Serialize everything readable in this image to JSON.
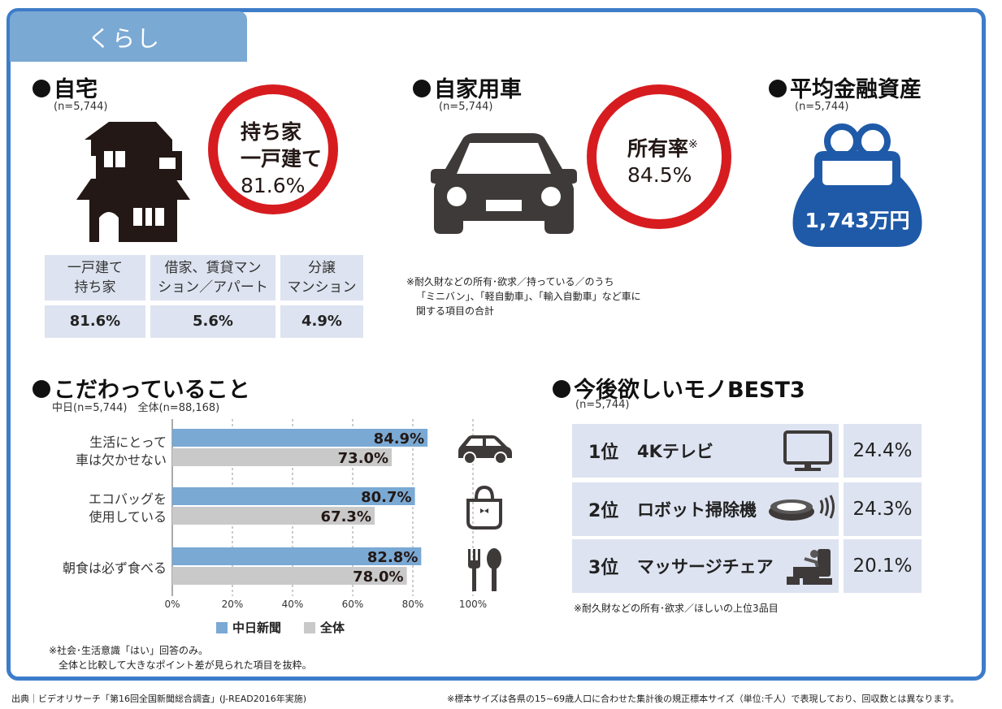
{
  "category_tab": "くらし",
  "home": {
    "title": "自宅",
    "n": "(n=5,744)",
    "circle_lines": [
      "持ち家",
      "一戸建て",
      "81.6%"
    ],
    "table_headers": [
      "一戸建て\n持ち家",
      "借家、賃貸マン\nション／アパート",
      "分譲\nマンション"
    ],
    "table_values": [
      "81.6%",
      "5.6%",
      "4.9%"
    ]
  },
  "car": {
    "title": "自家用車",
    "n": "(n=5,744)",
    "circle_label": "所有率",
    "circle_mark": "※",
    "circle_value": "84.5%",
    "note": [
      "※耐久財などの所有･欲求／持っている／のうち",
      "「ミニバン」、「軽自動車」、「輸入自動車」など車に",
      "関する項目の合計"
    ]
  },
  "assets": {
    "title": "平均金融資産",
    "n": "(n=5,744)",
    "value": "1,743万円"
  },
  "kodawari": {
    "title": "こだわっていること",
    "n": "中日(n=5,744)　全体(n=88,168)",
    "note": [
      "※社会･生活意識「はい」回答のみ。",
      "　全体と比較して大きなポイント差が見られた項目を抜粋。"
    ],
    "legend": [
      "中日新聞",
      "全体"
    ]
  },
  "chart_data": {
    "type": "bar",
    "orientation": "horizontal",
    "categories": [
      "生活にとって\n車は欠かせない",
      "エコバッグを\n使用している",
      "朝食は必ず食べる"
    ],
    "series": [
      {
        "name": "中日新聞",
        "values": [
          84.9,
          80.7,
          82.8
        ],
        "color": "#7aa9d4"
      },
      {
        "name": "全体",
        "values": [
          73.0,
          67.3,
          78.0
        ],
        "color": "#c9c9ca"
      }
    ],
    "value_labels": [
      [
        "84.9%",
        "73.0%"
      ],
      [
        "80.7%",
        "67.3%"
      ],
      [
        "82.8%",
        "78.0%"
      ]
    ],
    "xlim": [
      0,
      100
    ],
    "xticks": [
      "0%",
      "20%",
      "40%",
      "60%",
      "80%",
      "100%"
    ],
    "grid": "dashed-vertical",
    "legend_position": "bottom"
  },
  "best3": {
    "title": "今後欲しいモノBEST3",
    "n": "(n=5,744)",
    "rows": [
      {
        "rank": "1位",
        "item": "4Kテレビ",
        "pct": "24.4%",
        "icon": "tv-icon"
      },
      {
        "rank": "2位",
        "item": "ロボット掃除機",
        "pct": "24.3%",
        "icon": "robot-vacuum-icon"
      },
      {
        "rank": "3位",
        "item": "マッサージチェア",
        "pct": "20.1%",
        "icon": "massage-chair-icon"
      }
    ],
    "note": "※耐久財などの所有･欲求／ほしいの上位3品目"
  },
  "footer": {
    "source": "出典｜ビデオリサーチ「第16回全国新聞総合調査」(J-READ2016年実施)",
    "sample_note": "※標本サイズは各県の15~69歳人口に合わせた集計後の規正標本サイズ（単位:千人）で表現しており、回収数とは異なります。"
  },
  "colors": {
    "frame": "#3d7cc9",
    "tab": "#7aa9d4",
    "circle": "#d71c20",
    "purse": "#1f5aa8",
    "cell": "#dde3f0"
  }
}
